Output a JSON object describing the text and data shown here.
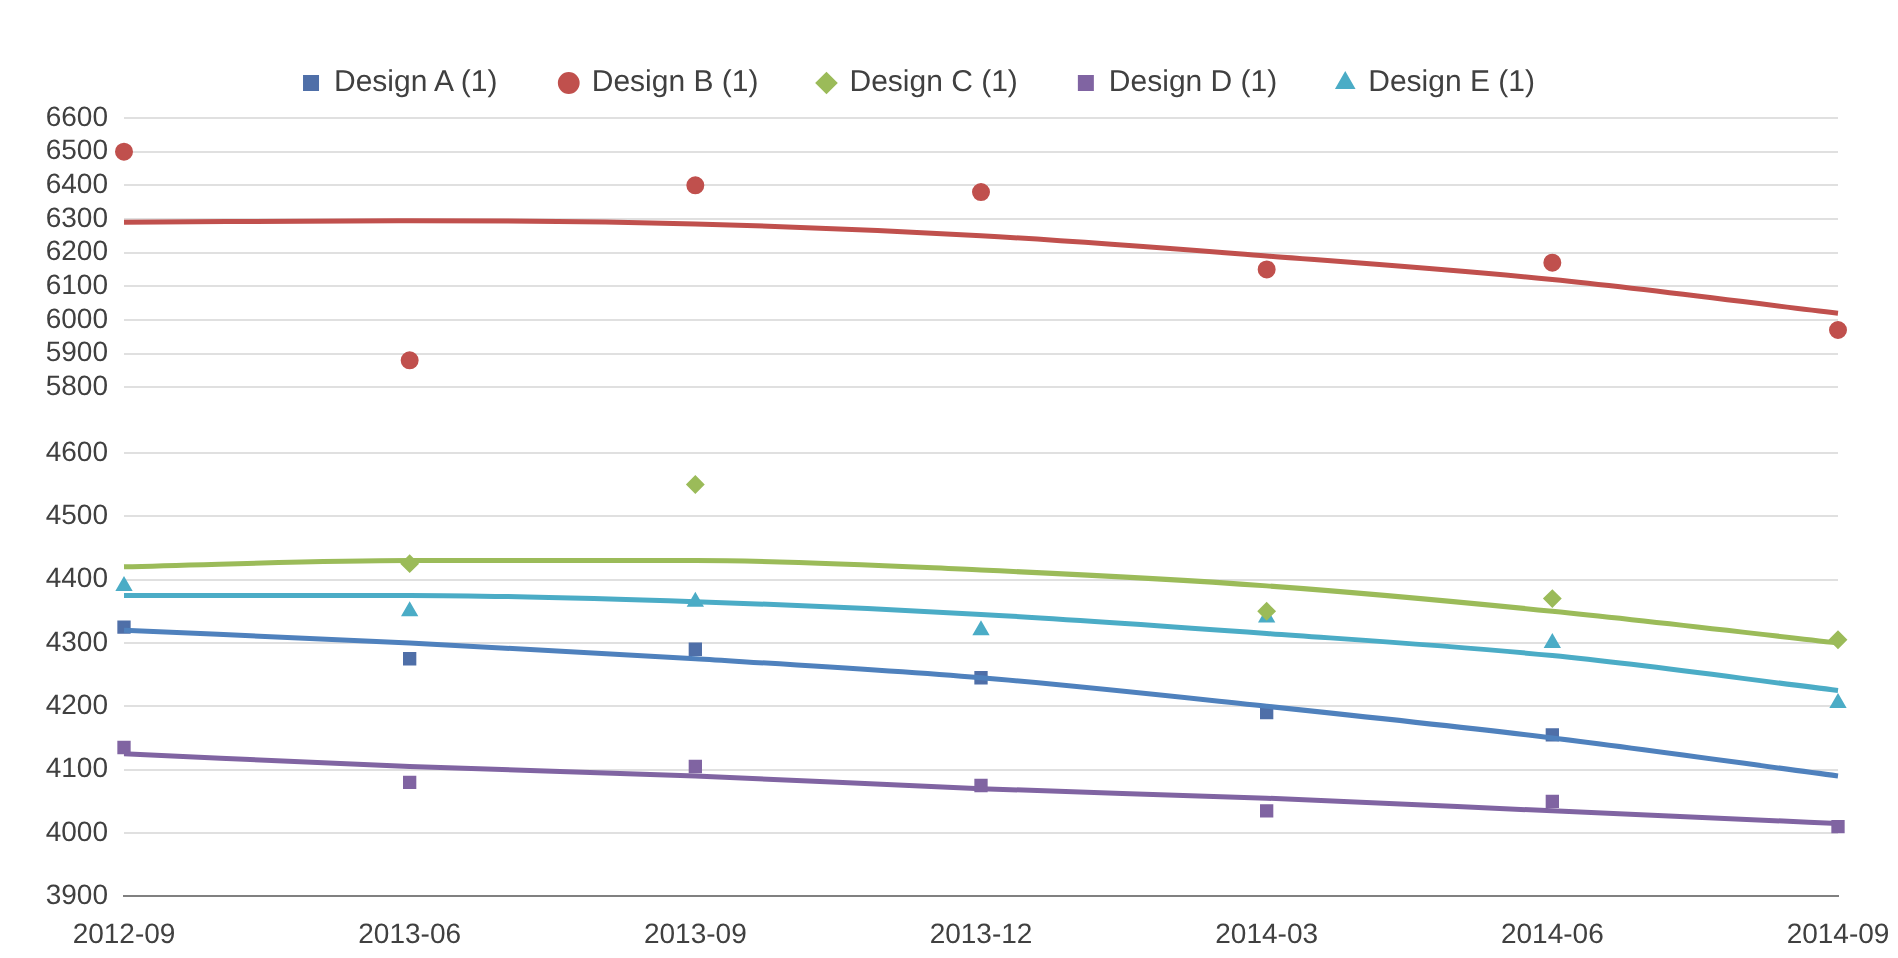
{
  "chart_data": [
    {
      "type": "scatter",
      "categories": [
        "2012-09",
        "2013-06",
        "2013-09",
        "2013-12",
        "2014-03",
        "2014-06",
        "2014-09"
      ],
      "ylim": [
        5800,
        6600
      ],
      "yticks": [
        5800,
        5900,
        6000,
        6100,
        6200,
        6300,
        6400,
        6500,
        6600
      ],
      "grid": "y",
      "legend": "top",
      "tick_labels": "y",
      "series": [
        {
          "name": "Design A (1)",
          "color": "#4f6fa8",
          "marker": "square",
          "values": [
            null,
            null,
            null,
            null,
            null,
            null,
            null
          ]
        },
        {
          "name": "Design B (1)",
          "color": "#c0504d",
          "marker": "circle",
          "values": [
            6500,
            5880,
            6400,
            6380,
            6150,
            6170,
            5970
          ]
        },
        {
          "name": "Design C (1)",
          "color": "#9bbb59",
          "marker": "diamond",
          "values": [
            null,
            null,
            null,
            null,
            null,
            null,
            null
          ]
        },
        {
          "name": "Design D (1)",
          "color": "#8064a2",
          "marker": "square",
          "values": [
            null,
            null,
            null,
            null,
            null,
            null,
            null
          ]
        },
        {
          "name": "Design E (1)",
          "color": "#4bacc6",
          "marker": "triangle",
          "values": [
            null,
            null,
            null,
            null,
            null,
            null,
            null
          ]
        },
        {
          "type": "line",
          "color": "#c0504d",
          "marker": "none",
          "values": [
            6290,
            6295,
            6285,
            6250,
            6190,
            6120,
            6020
          ]
        }
      ]
    },
    {
      "type": "scatter",
      "categories": [
        "2012-09",
        "2013-06",
        "2013-09",
        "2013-12",
        "2014-03",
        "2014-06",
        "2014-09"
      ],
      "ylim": [
        3900,
        4600
      ],
      "yticks": [
        3900,
        4000,
        4100,
        4200,
        4300,
        4400,
        4500,
        4600
      ],
      "grid": "y",
      "series": [
        {
          "type": "line",
          "color": "#9bbb59",
          "marker": "none",
          "values": [
            4420,
            4430,
            4430,
            4415,
            4390,
            4350,
            4300
          ]
        },
        {
          "type": "line",
          "color": "#4bacc6",
          "marker": "none",
          "values": [
            4375,
            4375,
            4365,
            4345,
            4315,
            4280,
            4225
          ]
        },
        {
          "type": "line",
          "color": "#4f81bd",
          "marker": "none",
          "values": [
            4320,
            4300,
            4275,
            4245,
            4200,
            4150,
            4090
          ]
        },
        {
          "type": "line",
          "color": "#8064a2",
          "marker": "none",
          "values": [
            4125,
            4105,
            4090,
            4070,
            4055,
            4035,
            4015
          ]
        },
        {
          "color": "#4f6fa8",
          "marker": "square",
          "values": [
            4325,
            4275,
            4290,
            4245,
            4190,
            4155,
            null
          ]
        },
        {
          "color": "#9bbb59",
          "marker": "diamond",
          "values": [
            null,
            4425,
            4550,
            null,
            4350,
            4370,
            4305
          ]
        },
        {
          "color": "#8064a2",
          "marker": "square",
          "values": [
            4135,
            4080,
            4105,
            4075,
            4035,
            4050,
            4010
          ]
        },
        {
          "color": "#4bacc6",
          "marker": "triangle",
          "values": [
            4390,
            4350,
            4365,
            4320,
            4340,
            4300,
            4205
          ]
        }
      ]
    }
  ]
}
